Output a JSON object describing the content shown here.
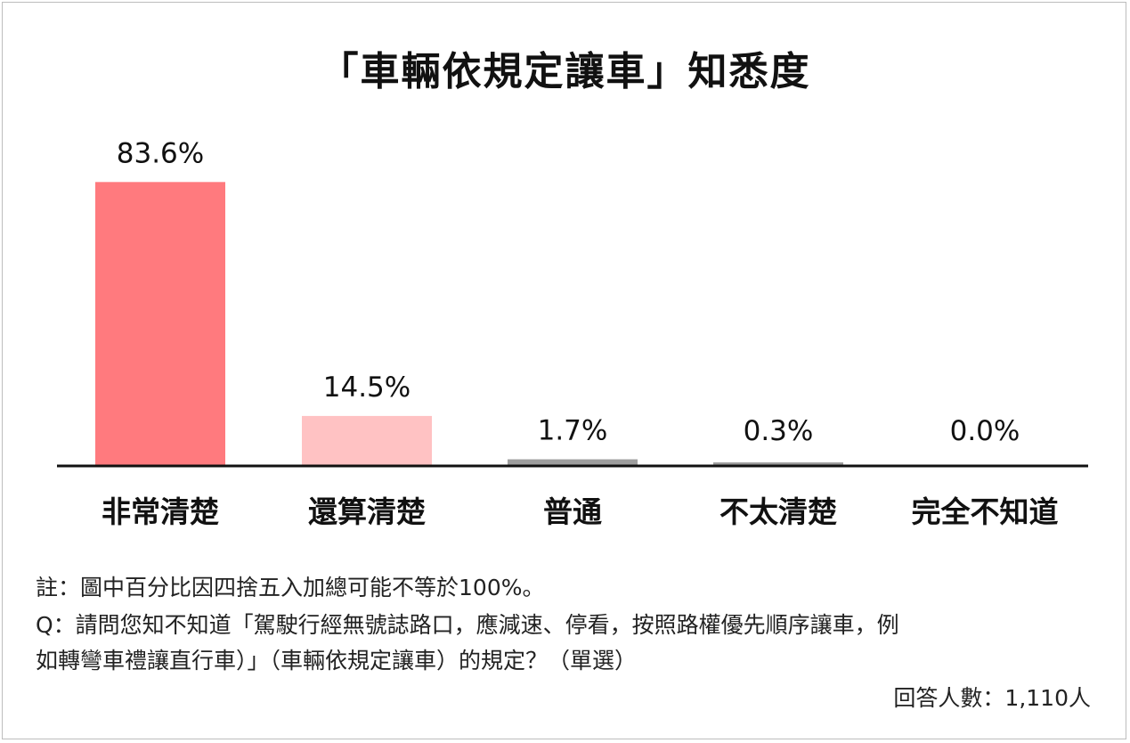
{
  "chart_data": {
    "type": "bar",
    "title": "「車輛依規定讓車」知悉度",
    "categories": [
      "非常清楚",
      "還算清楚",
      "普通",
      "不太清楚",
      "完全不知道"
    ],
    "values": [
      83.6,
      14.5,
      1.7,
      0.3,
      0.0
    ],
    "value_labels": [
      "83.6%",
      "14.5%",
      "1.7%",
      "0.3%",
      "0.0%"
    ],
    "colors": [
      "#ff7a7e",
      "#ffc2c3",
      "#9e9e9e",
      "#9e9e9e",
      "#9e9e9e"
    ],
    "ylim": [
      0,
      100
    ],
    "grid": false,
    "legend": "none"
  },
  "notes": {
    "line1": "註：圖中百分比因四捨五入加總可能不等於100%。",
    "line2": "Q：請問您知不知道「駕駛行經無號誌路口，應減速、停看，按照路權優先順序讓車，例",
    "line3": "如轉彎車禮讓直行車）」（車輛依規定讓車）的規定？（單選）",
    "respondents": "回答人數：1,110人"
  }
}
